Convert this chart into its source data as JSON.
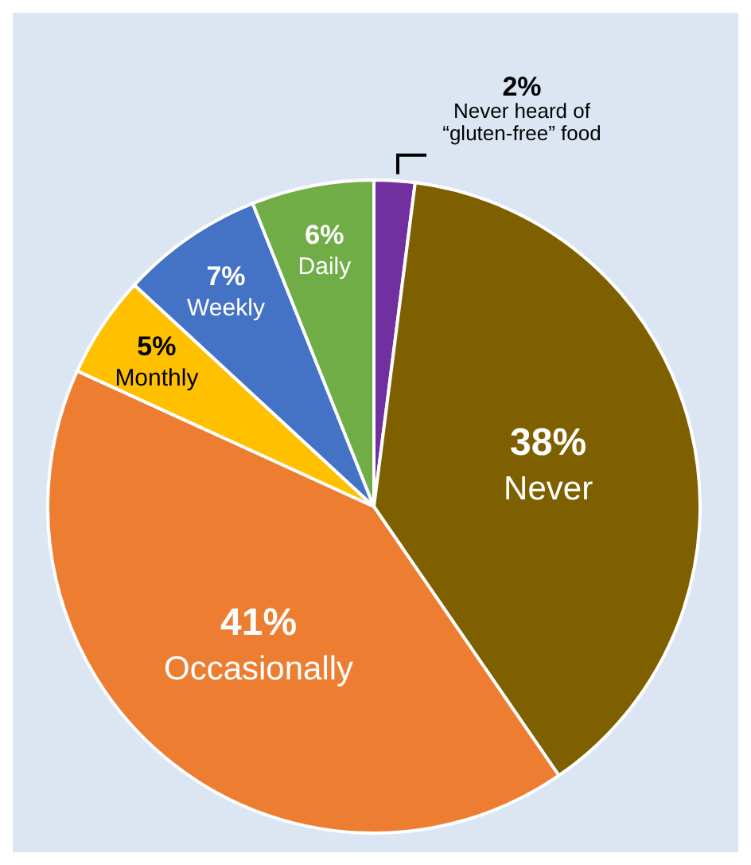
{
  "chart_data": {
    "type": "pie",
    "categories": [
      "Never heard of “gluten-free” food",
      "Never",
      "Occasionally",
      "Monthly",
      "Weekly",
      "Daily"
    ],
    "values": [
      2,
      38,
      41,
      5,
      7,
      6
    ],
    "colors": [
      "#7030a0",
      "#7f6000",
      "#ed7d31",
      "#ffc000",
      "#4472c4",
      "#70ad47"
    ],
    "value_labels": [
      "2%",
      "38%",
      "41%",
      "5%",
      "7%",
      "6%"
    ]
  }
}
